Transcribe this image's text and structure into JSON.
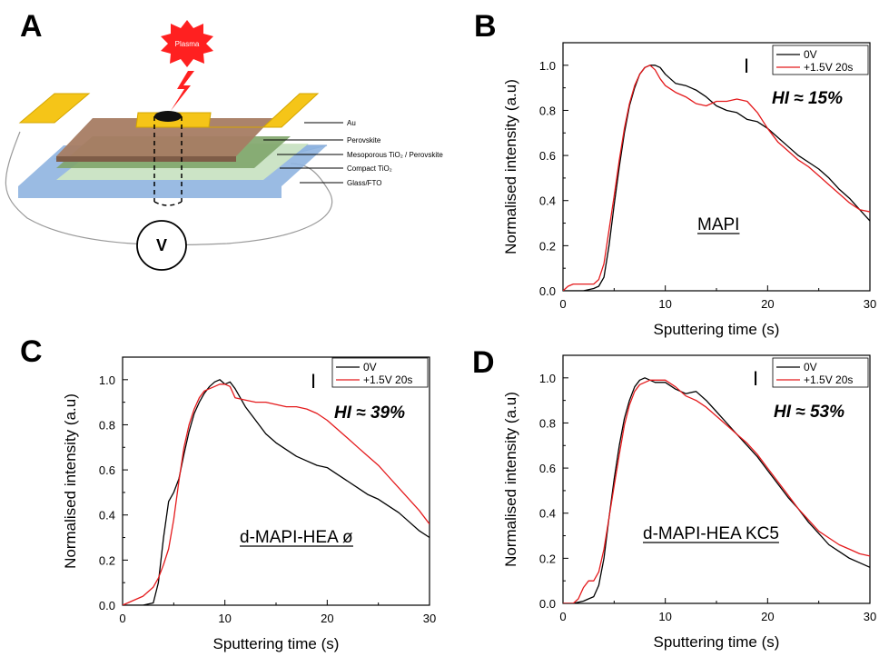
{
  "panel_letters": [
    "A",
    "B",
    "C",
    "D"
  ],
  "diagram": {
    "plasma_label": "Plasma",
    "layer_labels": [
      "Au",
      "Perovskite",
      "Mesoporous TiO₂ / Perovskite",
      "Compact TiO₂",
      "Glass/FTO"
    ],
    "voltmeter_label": "V",
    "colors": {
      "au": "#f5c518",
      "perovskite": "#a67c63",
      "meso": "#7fa56a",
      "compact": "#cfe6c4",
      "glass": "#8fb4e0",
      "plasma": "#ff2020"
    }
  },
  "chart_data": [
    {
      "type": "line",
      "panel": "B",
      "xlabel": "Sputtering time (s)",
      "ylabel": "Normalised intensity (a.u)",
      "xlim": [
        0,
        30
      ],
      "ylim": [
        0,
        1.1
      ],
      "xticks": [
        "0",
        "10",
        "20",
        "30"
      ],
      "yticks": [
        "0.0",
        "0.2",
        "0.4",
        "0.6",
        "0.8",
        "1.0"
      ],
      "legend_position": "top-right",
      "annotation_marker": "I",
      "hi_label": "HI ≈ 15%",
      "sample_label": "MAPI",
      "series": [
        {
          "name": "0V",
          "color": "#000000",
          "x": [
            0,
            1,
            2,
            3,
            3.5,
            4,
            4.5,
            5,
            5.5,
            6,
            6.5,
            7,
            7.5,
            8,
            8.5,
            9,
            9.5,
            10,
            11,
            12,
            13,
            14,
            15,
            16,
            17,
            18,
            19,
            20,
            21,
            22,
            23,
            24,
            25,
            26,
            27,
            28,
            29,
            30
          ],
          "y": [
            0,
            0,
            0,
            0.01,
            0.02,
            0.06,
            0.2,
            0.38,
            0.55,
            0.7,
            0.82,
            0.9,
            0.96,
            0.99,
            1.0,
            1.0,
            0.99,
            0.96,
            0.92,
            0.91,
            0.89,
            0.86,
            0.82,
            0.8,
            0.79,
            0.76,
            0.75,
            0.72,
            0.68,
            0.64,
            0.6,
            0.57,
            0.54,
            0.5,
            0.45,
            0.41,
            0.36,
            0.31
          ]
        },
        {
          "name": "+1.5V 20s",
          "color": "#e41a1c",
          "x": [
            0,
            0.5,
            1,
            2,
            3,
            3.5,
            4,
            4.5,
            5,
            5.5,
            6,
            6.5,
            7,
            7.5,
            8,
            8.5,
            9,
            9.5,
            10,
            11,
            12,
            13,
            14,
            15,
            16,
            17,
            18,
            19,
            20,
            21,
            22,
            23,
            24,
            25,
            26,
            27,
            28,
            29,
            30
          ],
          "y": [
            0.0,
            0.02,
            0.03,
            0.03,
            0.03,
            0.05,
            0.12,
            0.27,
            0.42,
            0.58,
            0.72,
            0.83,
            0.91,
            0.96,
            0.99,
            1.0,
            0.98,
            0.94,
            0.91,
            0.88,
            0.86,
            0.83,
            0.82,
            0.84,
            0.84,
            0.85,
            0.84,
            0.79,
            0.72,
            0.66,
            0.62,
            0.58,
            0.55,
            0.51,
            0.47,
            0.43,
            0.39,
            0.36,
            0.35
          ]
        }
      ]
    },
    {
      "type": "line",
      "panel": "C",
      "xlabel": "Sputtering time (s)",
      "ylabel": "Normalised intensity (a.u)",
      "xlim": [
        0,
        30
      ],
      "ylim": [
        0,
        1.1
      ],
      "xticks": [
        "0",
        "10",
        "20",
        "30"
      ],
      "yticks": [
        "0.0",
        "0.2",
        "0.4",
        "0.6",
        "0.8",
        "1.0"
      ],
      "legend_position": "top-right",
      "annotation_marker": "I",
      "hi_label": "HI ≈ 39%",
      "sample_label": "d-MAPI-HEA ø",
      "series": [
        {
          "name": "0V",
          "color": "#000000",
          "x": [
            0,
            1,
            2,
            3,
            3.5,
            4,
            4.5,
            5,
            5.5,
            6,
            6.5,
            7,
            7.5,
            8,
            8.5,
            9,
            9.5,
            10,
            10.5,
            11,
            11.5,
            12,
            13,
            14,
            15,
            16,
            17,
            18,
            19,
            20,
            21,
            22,
            23,
            24,
            25,
            26,
            27,
            28,
            29,
            30
          ],
          "y": [
            0,
            0,
            0,
            0.01,
            0.1,
            0.3,
            0.46,
            0.5,
            0.56,
            0.67,
            0.77,
            0.85,
            0.9,
            0.94,
            0.97,
            0.99,
            1.0,
            0.98,
            0.99,
            0.96,
            0.92,
            0.88,
            0.82,
            0.76,
            0.72,
            0.69,
            0.66,
            0.64,
            0.62,
            0.61,
            0.58,
            0.55,
            0.52,
            0.49,
            0.47,
            0.44,
            0.41,
            0.37,
            0.33,
            0.3
          ]
        },
        {
          "name": "+1.5V 20s",
          "color": "#e41a1c",
          "x": [
            0,
            1,
            2,
            3,
            3.5,
            4,
            4.5,
            5,
            5.5,
            6,
            6.5,
            7,
            7.5,
            8,
            8.5,
            9,
            9.5,
            10,
            10.5,
            11,
            12,
            13,
            14,
            15,
            16,
            17,
            18,
            19,
            20,
            21,
            22,
            23,
            24,
            25,
            26,
            27,
            28,
            29,
            30
          ],
          "y": [
            0,
            0.02,
            0.04,
            0.08,
            0.12,
            0.18,
            0.25,
            0.38,
            0.55,
            0.7,
            0.8,
            0.87,
            0.92,
            0.95,
            0.96,
            0.97,
            0.98,
            0.98,
            0.97,
            0.92,
            0.91,
            0.9,
            0.9,
            0.89,
            0.88,
            0.88,
            0.87,
            0.85,
            0.82,
            0.78,
            0.74,
            0.7,
            0.66,
            0.62,
            0.57,
            0.52,
            0.47,
            0.42,
            0.36
          ]
        }
      ]
    },
    {
      "type": "line",
      "panel": "D",
      "xlabel": "Sputtering time (s)",
      "ylabel": "Normalised intensity (a.u)",
      "xlim": [
        0,
        30
      ],
      "ylim": [
        0,
        1.1
      ],
      "xticks": [
        "0",
        "10",
        "20",
        "30"
      ],
      "yticks": [
        "0.0",
        "0.2",
        "0.4",
        "0.6",
        "0.8",
        "1.0"
      ],
      "legend_position": "top-right",
      "annotation_marker": "I",
      "hi_label": "HI ≈ 53%",
      "sample_label": "d-MAPI-HEA KC5",
      "series": [
        {
          "name": "0V",
          "color": "#000000",
          "x": [
            0,
            1,
            2,
            2.5,
            3,
            3.5,
            4,
            4.5,
            5,
            5.5,
            6,
            6.5,
            7,
            7.5,
            8,
            8.5,
            9,
            10,
            11,
            12,
            13,
            14,
            15,
            16,
            17,
            18,
            19,
            20,
            21,
            22,
            23,
            24,
            25,
            26,
            27,
            28,
            29,
            30
          ],
          "y": [
            0,
            0,
            0.01,
            0.02,
            0.03,
            0.08,
            0.2,
            0.38,
            0.55,
            0.7,
            0.82,
            0.9,
            0.96,
            0.99,
            1.0,
            0.99,
            0.98,
            0.98,
            0.95,
            0.93,
            0.94,
            0.9,
            0.85,
            0.8,
            0.75,
            0.7,
            0.65,
            0.59,
            0.53,
            0.47,
            0.42,
            0.36,
            0.31,
            0.26,
            0.23,
            0.2,
            0.18,
            0.16
          ]
        },
        {
          "name": "+1.5V 20s",
          "color": "#e41a1c",
          "x": [
            0,
            1,
            1.5,
            2,
            2.5,
            3,
            3.5,
            4,
            4.5,
            5,
            5.5,
            6,
            6.5,
            7,
            7.5,
            8,
            8.5,
            9,
            10,
            11,
            12,
            13,
            14,
            15,
            16,
            17,
            18,
            19,
            20,
            21,
            22,
            23,
            24,
            25,
            26,
            27,
            28,
            29,
            30
          ],
          "y": [
            0,
            0,
            0.02,
            0.07,
            0.1,
            0.1,
            0.14,
            0.24,
            0.38,
            0.52,
            0.66,
            0.79,
            0.88,
            0.94,
            0.97,
            0.98,
            0.99,
            0.99,
            0.99,
            0.96,
            0.92,
            0.9,
            0.87,
            0.83,
            0.79,
            0.75,
            0.71,
            0.66,
            0.6,
            0.54,
            0.48,
            0.42,
            0.37,
            0.32,
            0.29,
            0.26,
            0.24,
            0.22,
            0.21
          ]
        }
      ]
    }
  ]
}
